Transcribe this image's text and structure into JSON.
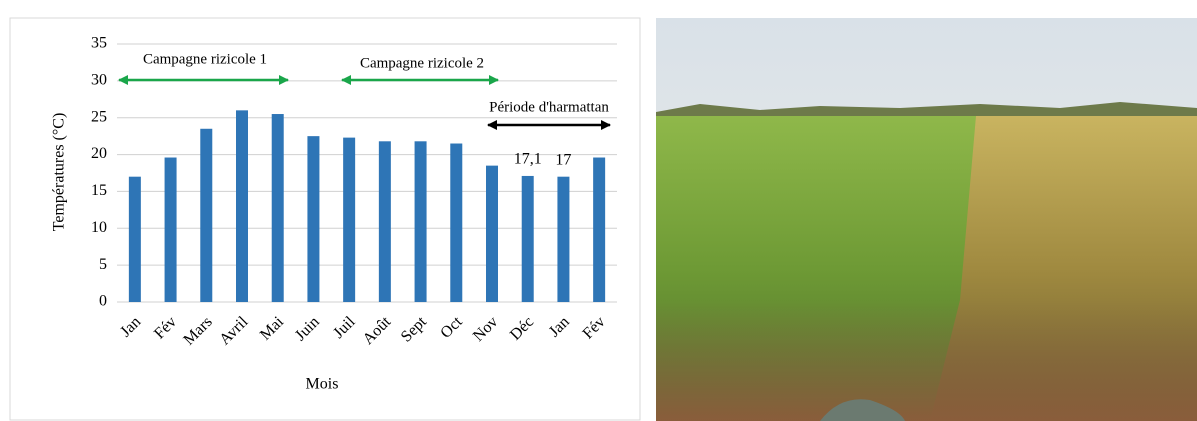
{
  "chart_data": {
    "type": "bar",
    "x_label": "Mois",
    "y_label": "Températures (°C)",
    "categories": [
      "Jan",
      "Fév",
      "Mars",
      "Avril",
      "Mai",
      "Juin",
      "Juil",
      "Août",
      "Sept",
      "Oct",
      "Nov",
      "Déc",
      "Jan",
      "Fév"
    ],
    "values": [
      17,
      19.6,
      23.5,
      26,
      25.5,
      22.5,
      22.3,
      21.8,
      21.8,
      21.5,
      18.5,
      17.1,
      17,
      19.6
    ],
    "value_labels": [
      null,
      null,
      null,
      null,
      null,
      null,
      null,
      null,
      null,
      null,
      null,
      "17,1",
      "17",
      null
    ],
    "color": "#2e75b6",
    "ylim": [
      0,
      35
    ],
    "yticks": [
      0,
      5,
      10,
      15,
      20,
      25,
      30,
      35
    ],
    "grid": true,
    "annotations": [
      {
        "text": "Campagne rizicole 1",
        "color": "#1aa64a"
      },
      {
        "text": "Campagne rizicole 2",
        "color": "#1aa64a"
      },
      {
        "text": "Période d'harmattan",
        "color": "#000000"
      }
    ]
  }
}
